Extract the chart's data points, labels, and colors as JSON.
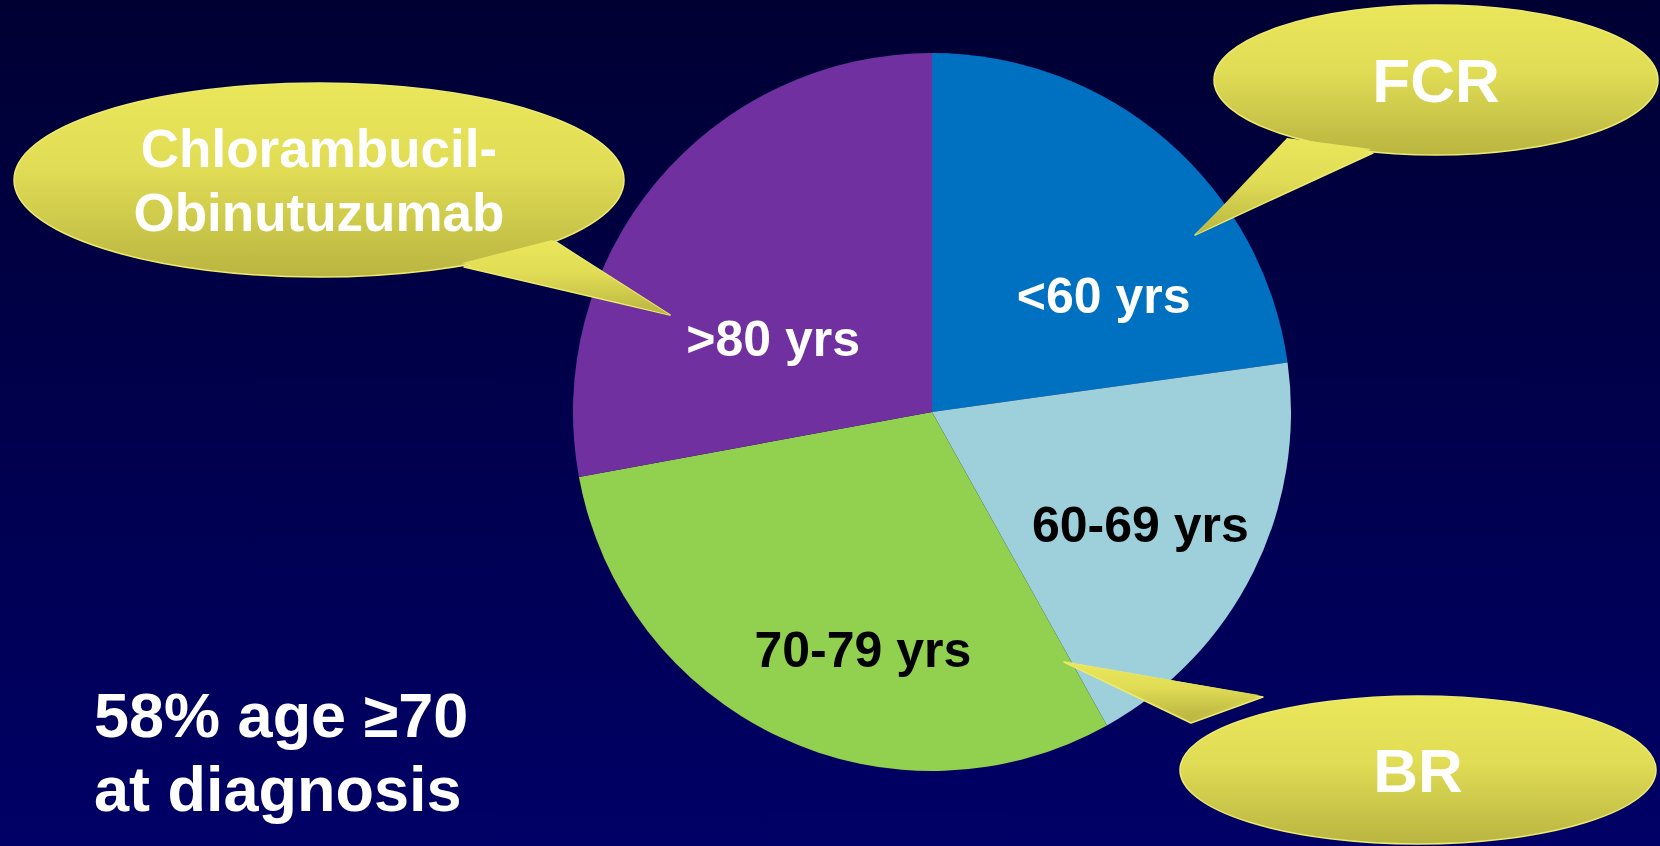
{
  "chart_data": {
    "type": "pie",
    "categories": [
      "<60 yrs",
      "60-69 yrs",
      "70-79 yrs",
      ">80 yrs"
    ],
    "values": [
      22.8,
      19.1,
      30.2,
      27.9
    ],
    "colors": [
      "#0070c0",
      "#9dd0da",
      "#92d050",
      "#7030a0"
    ],
    "annotations": [
      "Chlorambucil-Obinutuzumab",
      "FCR",
      "BR",
      "58% age ≥70 at diagnosis"
    ]
  }
}
